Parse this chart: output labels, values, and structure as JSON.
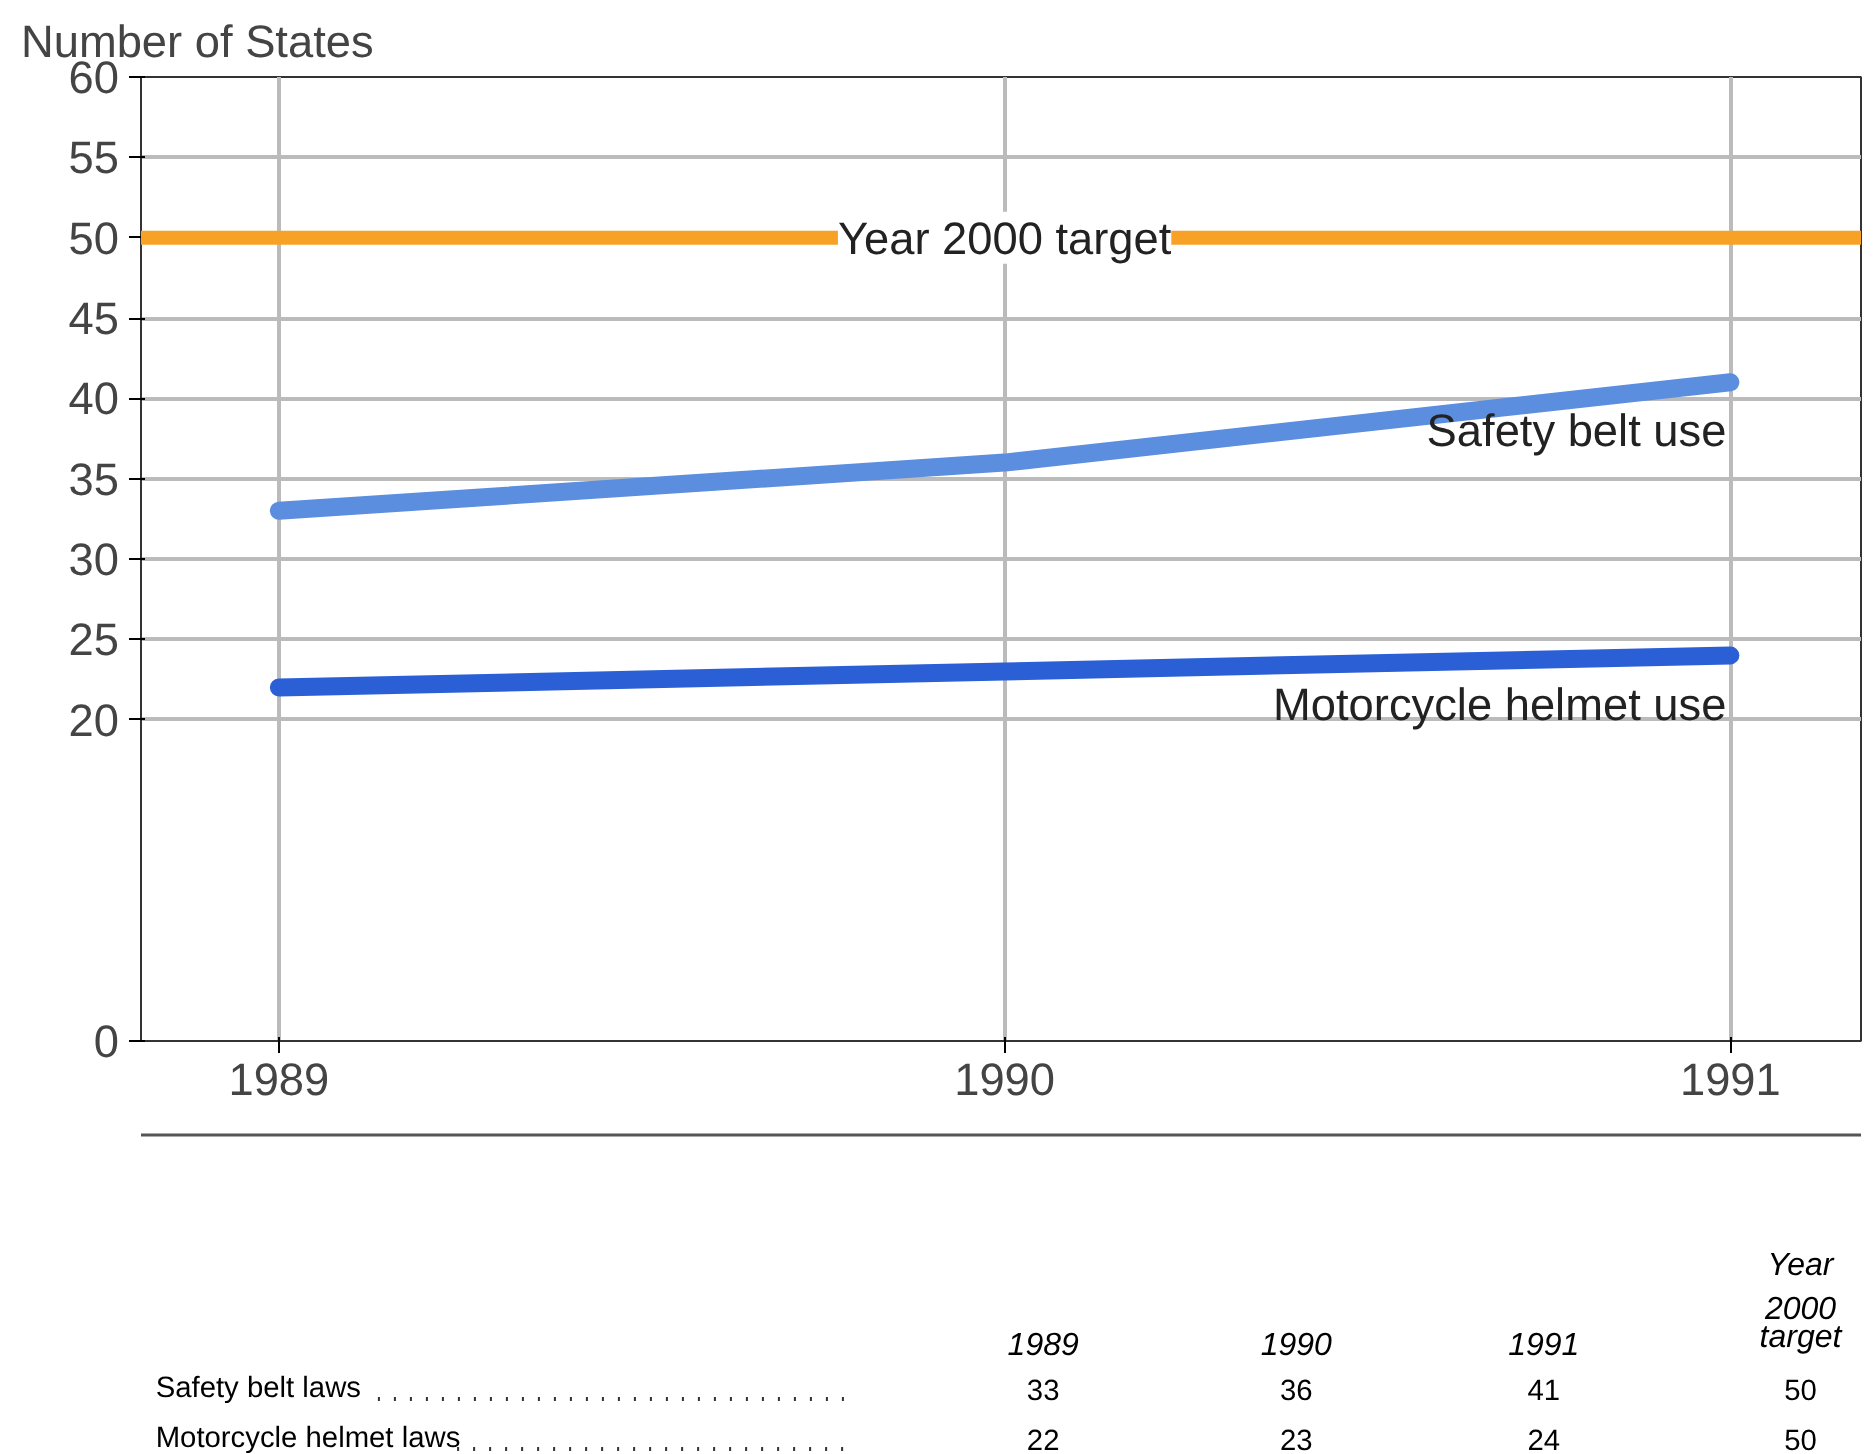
{
  "chart_data": [
    {
      "type": "line",
      "ylabel": "Number of States",
      "categories": [
        "1989",
        "1990",
        "1991"
      ],
      "series": [
        {
          "name": "Safety belt use",
          "color": "#5b8ede",
          "values": [
            33,
            36,
            41
          ]
        },
        {
          "name": "Motorcycle helmet use",
          "color": "#2a5fd6",
          "values": [
            22,
            23,
            24
          ]
        }
      ],
      "ylim": [
        0,
        60
      ],
      "yticks": [
        0,
        20,
        25,
        30,
        35,
        40,
        45,
        50,
        55,
        60
      ],
      "ref_lines": [
        {
          "axis": "y",
          "value": 50,
          "label": "Year 2000 target",
          "color": "#f7a127"
        }
      ],
      "grid": true,
      "marker": "none",
      "line_style": "solid"
    },
    {
      "type": "other",
      "data_labels": true,
      "categories": [
        "1989",
        "1990",
        "1991",
        "Year 2000 target"
      ],
      "series": [
        {
          "name": "Safety belt laws",
          "values": [
            33,
            36,
            41,
            50
          ]
        },
        {
          "name": "Motorcycle helmet laws",
          "values": [
            22,
            23,
            24,
            50
          ]
        }
      ]
    }
  ]
}
